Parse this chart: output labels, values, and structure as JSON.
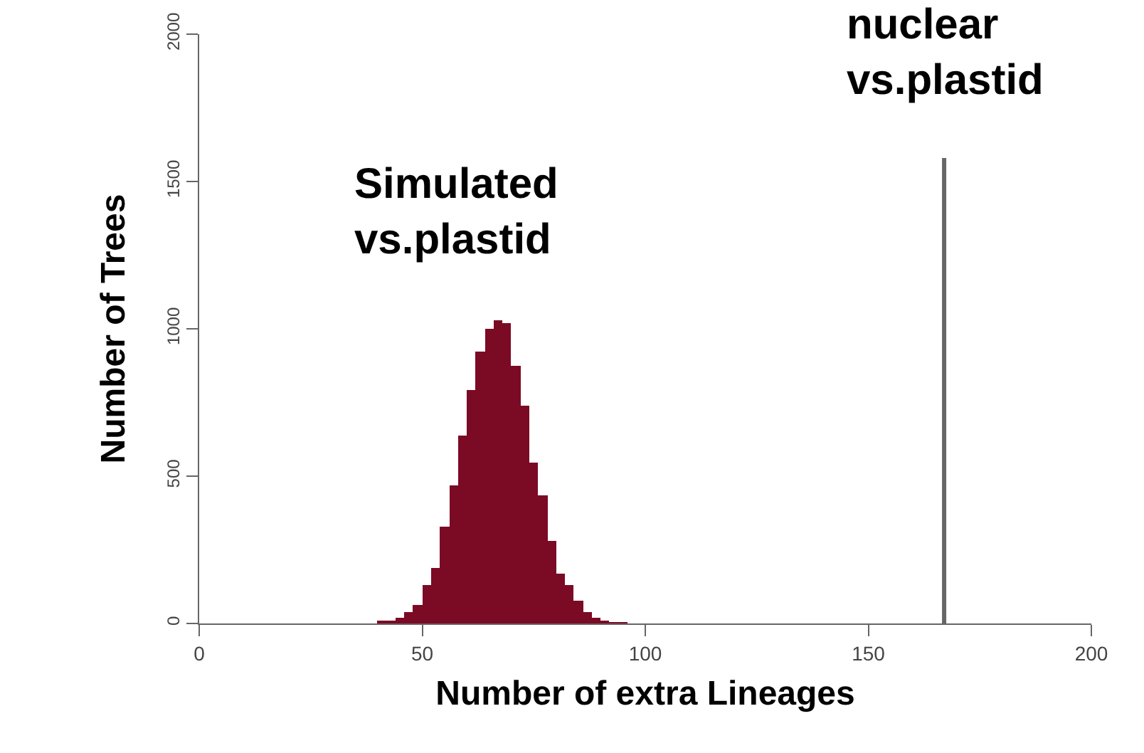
{
  "chart_data": {
    "type": "histogram",
    "xlabel": "Number of extra Lineages",
    "ylabel": "Number of Trees",
    "bins": [
      40,
      42,
      44,
      46,
      48,
      50,
      52,
      54,
      56,
      58,
      60,
      62,
      64,
      66,
      68,
      70,
      72,
      74,
      76,
      78,
      80,
      82,
      84,
      86,
      88,
      90,
      92,
      94,
      96
    ],
    "values": [
      5,
      10,
      20,
      40,
      65,
      130,
      190,
      330,
      470,
      640,
      790,
      925,
      1000,
      1030,
      1020,
      875,
      740,
      545,
      435,
      280,
      170,
      130,
      75,
      40,
      20,
      8,
      4,
      2
    ],
    "color": "#7b0a25",
    "xlim": [
      0,
      200
    ],
    "xticks": [
      0,
      50,
      100,
      150,
      200
    ],
    "ylim": [
      0,
      2000
    ],
    "yticks": [
      0,
      500,
      1000,
      1500,
      2000
    ],
    "ref_lines": [
      {
        "axis": "x",
        "value": 167,
        "label": "nuclear\nvs.plastid",
        "color": "#666666"
      }
    ],
    "annotations": [
      "Simulated\nvs.plastid"
    ],
    "grid": false
  }
}
